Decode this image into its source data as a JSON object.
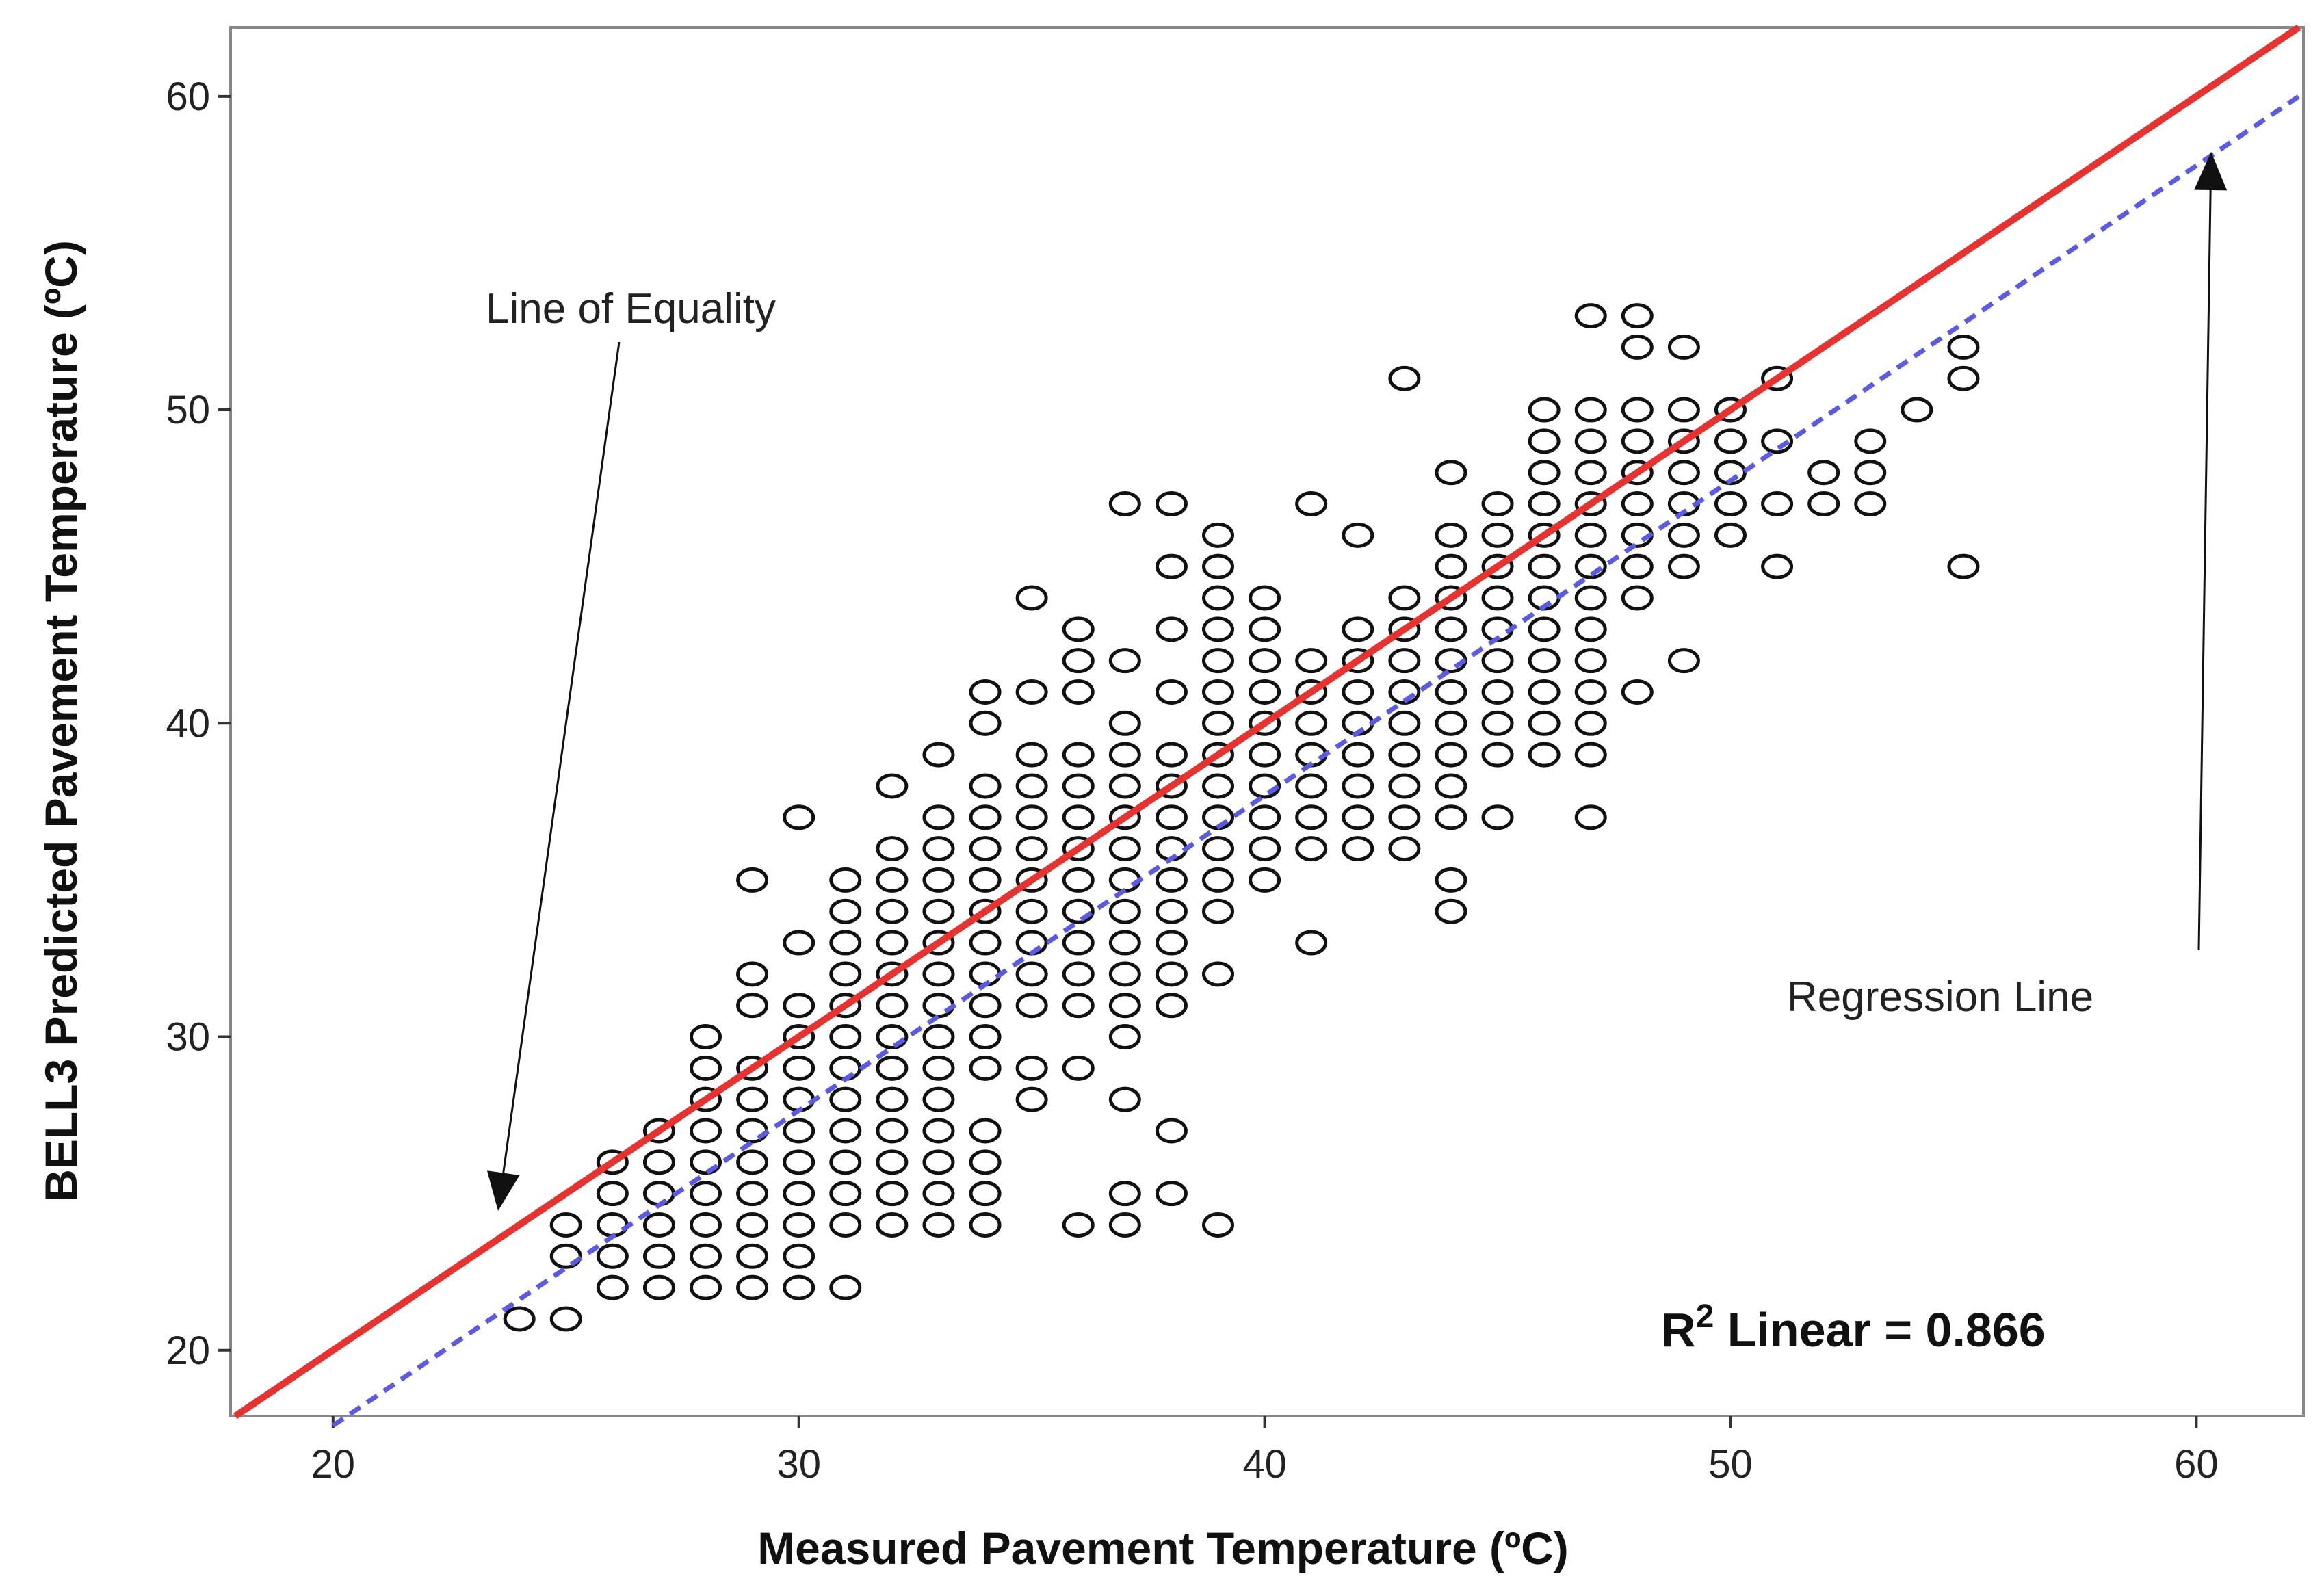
{
  "chart_data": {
    "type": "scatter",
    "xlabel": "Measured Pavement Temperature (ºC)",
    "ylabel": "BELL3 Predicted Pavement Temperature (ºC)",
    "xlim": [
      17.8,
      62.3
    ],
    "ylim": [
      17.9,
      62.2
    ],
    "xticks": [
      "20",
      "30",
      "40",
      "50",
      "60"
    ],
    "yticks": [
      "20",
      "30",
      "40",
      "50",
      "60"
    ],
    "grid": false,
    "annotations": {
      "equality": "Line of Equality",
      "regression": "Regression Line",
      "r2_prefix": "R",
      "r2_sup": "2",
      "r2_suffix": " Linear = 0.866"
    },
    "lines": {
      "equality": {
        "color": "#e8322f",
        "style": "solid",
        "slope": 1.0,
        "intercept": 0.0
      },
      "regression": {
        "color": "#5a5ae6",
        "style": "dashed",
        "x": [
          20.0,
          62.3
        ],
        "y": [
          17.6,
          60.1
        ]
      }
    },
    "marker_color": "#111111",
    "points": [
      {
        "x": 24,
        "ys": [
          21
        ]
      },
      {
        "x": 25,
        "ys": [
          21,
          23,
          24
        ]
      },
      {
        "x": 26,
        "ys": [
          22,
          23,
          24,
          25,
          26
        ]
      },
      {
        "x": 27,
        "ys": [
          22,
          23,
          24,
          25,
          26,
          27
        ]
      },
      {
        "x": 28,
        "ys": [
          22,
          23,
          24,
          25,
          26,
          27,
          28,
          29,
          30
        ]
      },
      {
        "x": 29,
        "ys": [
          22,
          23,
          24,
          25,
          26,
          27,
          28,
          29,
          31,
          32,
          35
        ]
      },
      {
        "x": 30,
        "ys": [
          22,
          23,
          24,
          25,
          26,
          27,
          28,
          29,
          30,
          31,
          33,
          37
        ]
      },
      {
        "x": 31,
        "ys": [
          22,
          24,
          25,
          26,
          27,
          28,
          29,
          30,
          31,
          32,
          33,
          34,
          35
        ]
      },
      {
        "x": 32,
        "ys": [
          24,
          25,
          26,
          27,
          28,
          29,
          30,
          31,
          32,
          33,
          34,
          35,
          36,
          38
        ]
      },
      {
        "x": 33,
        "ys": [
          24,
          25,
          26,
          27,
          28,
          29,
          30,
          31,
          32,
          33,
          34,
          35,
          36,
          37,
          39
        ]
      },
      {
        "x": 34,
        "ys": [
          24,
          25,
          26,
          27,
          29,
          30,
          31,
          32,
          33,
          34,
          35,
          36,
          37,
          38,
          40,
          41
        ]
      },
      {
        "x": 35,
        "ys": [
          28,
          29,
          31,
          32,
          33,
          34,
          35,
          36,
          37,
          38,
          39,
          41,
          44
        ]
      },
      {
        "x": 36,
        "ys": [
          24,
          29,
          31,
          32,
          33,
          34,
          35,
          36,
          37,
          38,
          39,
          41,
          42,
          43
        ]
      },
      {
        "x": 37,
        "ys": [
          24,
          25,
          28,
          30,
          31,
          32,
          33,
          34,
          35,
          36,
          37,
          38,
          39,
          40,
          42,
          47
        ]
      },
      {
        "x": 38,
        "ys": [
          25,
          27,
          31,
          32,
          33,
          34,
          35,
          36,
          37,
          38,
          39,
          41,
          43,
          45,
          47
        ]
      },
      {
        "x": 39,
        "ys": [
          24,
          32,
          34,
          35,
          36,
          37,
          38,
          39,
          40,
          41,
          42,
          43,
          44,
          45,
          46
        ]
      },
      {
        "x": 40,
        "ys": [
          35,
          36,
          37,
          38,
          39,
          40,
          41,
          42,
          43,
          44
        ]
      },
      {
        "x": 41,
        "ys": [
          33,
          36,
          37,
          38,
          39,
          40,
          41,
          42,
          47
        ]
      },
      {
        "x": 42,
        "ys": [
          36,
          37,
          38,
          39,
          40,
          41,
          42,
          43,
          46
        ]
      },
      {
        "x": 43,
        "ys": [
          36,
          37,
          38,
          39,
          40,
          41,
          42,
          43,
          44,
          51
        ]
      },
      {
        "x": 44,
        "ys": [
          34,
          35,
          37,
          38,
          39,
          40,
          41,
          42,
          43,
          44,
          45,
          46,
          48
        ]
      },
      {
        "x": 45,
        "ys": [
          37,
          39,
          40,
          41,
          42,
          43,
          44,
          45,
          46,
          47
        ]
      },
      {
        "x": 46,
        "ys": [
          39,
          40,
          41,
          42,
          43,
          44,
          45,
          46,
          47,
          48,
          49,
          50
        ]
      },
      {
        "x": 47,
        "ys": [
          37,
          39,
          40,
          41,
          42,
          43,
          44,
          45,
          46,
          47,
          48,
          49,
          50,
          53
        ]
      },
      {
        "x": 48,
        "ys": [
          41,
          44,
          45,
          46,
          47,
          48,
          49,
          50,
          52,
          53
        ]
      },
      {
        "x": 49,
        "ys": [
          42,
          45,
          46,
          47,
          48,
          49,
          50,
          52
        ]
      },
      {
        "x": 50,
        "ys": [
          46,
          47,
          48,
          49,
          50
        ]
      },
      {
        "x": 51,
        "ys": [
          45,
          47,
          49,
          51
        ]
      },
      {
        "x": 52,
        "ys": [
          47,
          48
        ]
      },
      {
        "x": 53,
        "ys": [
          47,
          48,
          49
        ]
      },
      {
        "x": 54,
        "ys": [
          50
        ]
      },
      {
        "x": 55,
        "ys": [
          45,
          51,
          52
        ]
      }
    ]
  }
}
